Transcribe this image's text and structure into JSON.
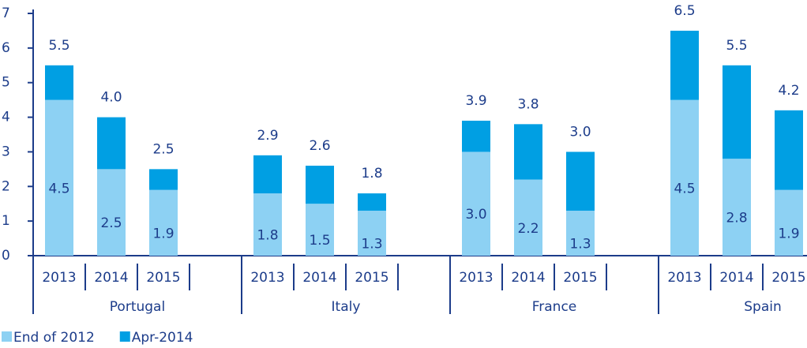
{
  "chart_data": {
    "type": "stacked-bar",
    "categories": [
      "2013",
      "2014",
      "2015",
      "2013",
      "2014",
      "2015",
      "2013",
      "2014",
      "2015",
      "2013",
      "2014",
      "2015"
    ],
    "groups": [
      "Portugal",
      "Italy",
      "France",
      "Spain"
    ],
    "series": [
      {
        "name": "End of 2012",
        "color": "#8dd1f3",
        "values": [
          4.5,
          2.5,
          1.9,
          1.8,
          1.5,
          1.3,
          3.0,
          2.2,
          1.3,
          4.5,
          2.8,
          1.9
        ],
        "value_labels": [
          "4.5",
          "2.5",
          "1.9",
          "1.8",
          "1.5",
          "1.3",
          "3.0",
          "2.2",
          "1.3",
          "4.5",
          "2.8",
          "1.9"
        ]
      },
      {
        "name": "Apr-2014",
        "color": "#009fe3",
        "values": [
          1.0,
          1.5,
          0.6,
          1.1,
          1.1,
          0.5,
          0.9,
          1.6,
          1.7,
          2.0,
          2.7,
          2.3
        ]
      }
    ],
    "totals": [
      5.5,
      4.0,
      2.5,
      2.9,
      2.6,
      1.8,
      3.9,
      3.8,
      3.0,
      6.5,
      5.5,
      4.2
    ],
    "total_labels": [
      "5.5",
      "4.0",
      "2.5",
      "2.9",
      "2.6",
      "1.8",
      "3.9",
      "3.8",
      "3.0",
      "6.5",
      "5.5",
      "4.2"
    ],
    "ylim": [
      0,
      7
    ],
    "yticks": [
      0,
      1,
      2,
      3,
      4,
      5,
      6,
      7
    ]
  }
}
